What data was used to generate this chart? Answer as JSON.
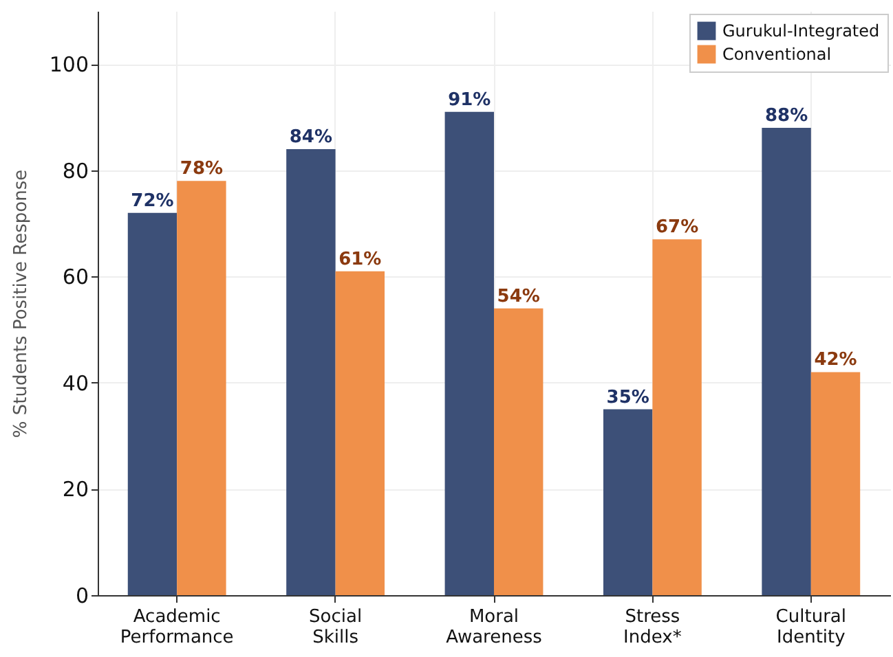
{
  "chart_data": {
    "type": "bar",
    "ylabel": "% Students Positive Response",
    "categories": [
      "Academic Performance",
      "Social Skills",
      "Moral Awareness",
      "Stress Index*",
      "Cultural Identity"
    ],
    "series": [
      {
        "name": "Gurukul-Integrated",
        "color": "#3d5078",
        "values": [
          72,
          84,
          91,
          35,
          88
        ]
      },
      {
        "name": "Conventional",
        "color": "#f0904a",
        "values": [
          78,
          61,
          54,
          67,
          42
        ]
      }
    ],
    "value_labels": [
      [
        "72%",
        "84%",
        "91%",
        "35%",
        "88%"
      ],
      [
        "78%",
        "61%",
        "54%",
        "67%",
        "42%"
      ]
    ],
    "ylim": [
      0,
      110
    ],
    "yticks": [
      0,
      20,
      40,
      60,
      80,
      100
    ],
    "grid": true,
    "legend": "top right"
  }
}
